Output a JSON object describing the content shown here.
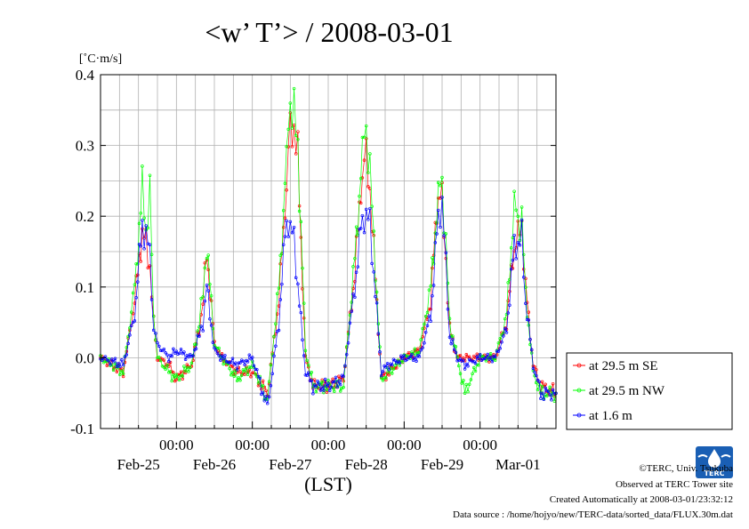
{
  "chart_data": {
    "type": "line",
    "title": "<w’ T’> / 2008-03-01",
    "ylabel": "[˚C·m/s]",
    "xlabel": "(LST)",
    "ylim": [
      -0.1,
      0.4
    ],
    "y_ticks": [
      -0.1,
      0.0,
      0.1,
      0.2,
      0.3,
      0.4
    ],
    "y_tick_labels": [
      "-0.1",
      "0.0",
      "0.1",
      "0.2",
      "0.3",
      "0.4"
    ],
    "x_unit": "days since 2008-02-24 00:00 LST",
    "xlim": [
      0,
      6
    ],
    "x_tick_positions": [
      1,
      2,
      3,
      4,
      5
    ],
    "x_time_labels": [
      "00:00",
      "00:00",
      "00:00",
      "00:00",
      "00:00"
    ],
    "x_date_labels": [
      {
        "label": "Feb-25",
        "pos": 0.5
      },
      {
        "label": "Feb-26",
        "pos": 1.5
      },
      {
        "label": "Feb-27",
        "pos": 2.5
      },
      {
        "label": "Feb-28",
        "pos": 3.5
      },
      {
        "label": "Feb-29",
        "pos": 4.5
      },
      {
        "label": "Mar-01",
        "pos": 5.5
      }
    ],
    "grid": true,
    "legend_position": "right",
    "series": [
      {
        "name": "at 29.5 m SE",
        "color": "#ff0000",
        "x": [
          0.0,
          0.3,
          0.45,
          0.55,
          0.6,
          0.65,
          0.7,
          0.75,
          0.9,
          1.0,
          1.2,
          1.3,
          1.35,
          1.4,
          1.5,
          1.6,
          1.8,
          2.0,
          2.2,
          2.35,
          2.45,
          2.5,
          2.55,
          2.6,
          2.7,
          2.8,
          3.0,
          3.2,
          3.35,
          3.45,
          3.5,
          3.55,
          3.6,
          3.7,
          3.8,
          4.0,
          4.2,
          4.35,
          4.45,
          4.5,
          4.55,
          4.6,
          4.7,
          4.8,
          5.0,
          5.2,
          5.35,
          5.45,
          5.5,
          5.55,
          5.6,
          5.7,
          5.8,
          6.0
        ],
        "y": [
          0.0,
          -0.02,
          0.08,
          0.18,
          0.16,
          0.13,
          0.05,
          0.0,
          -0.01,
          -0.03,
          -0.01,
          0.04,
          0.08,
          0.15,
          0.02,
          0.0,
          -0.02,
          -0.02,
          -0.05,
          0.08,
          0.25,
          0.32,
          0.33,
          0.28,
          0.0,
          -0.04,
          -0.04,
          -0.03,
          0.12,
          0.27,
          0.28,
          0.24,
          0.15,
          -0.03,
          -0.02,
          0.0,
          0.01,
          0.08,
          0.24,
          0.22,
          0.14,
          0.04,
          0.0,
          0.0,
          0.0,
          0.0,
          0.05,
          0.16,
          0.17,
          0.19,
          0.1,
          -0.01,
          -0.04,
          -0.05
        ]
      },
      {
        "name": "at 29.5 m NW",
        "color": "#00ff00",
        "x": [
          0.0,
          0.3,
          0.45,
          0.55,
          0.6,
          0.65,
          0.7,
          0.75,
          0.9,
          1.0,
          1.2,
          1.3,
          1.35,
          1.4,
          1.5,
          1.6,
          1.8,
          2.0,
          2.2,
          2.35,
          2.45,
          2.5,
          2.55,
          2.6,
          2.7,
          2.8,
          3.0,
          3.2,
          3.35,
          3.45,
          3.5,
          3.55,
          3.6,
          3.7,
          3.8,
          4.0,
          4.2,
          4.35,
          4.45,
          4.5,
          4.55,
          4.6,
          4.7,
          4.8,
          5.0,
          5.2,
          5.35,
          5.45,
          5.5,
          5.55,
          5.6,
          5.7,
          5.8,
          6.0
        ],
        "y": [
          0.0,
          -0.02,
          0.1,
          0.24,
          0.18,
          0.23,
          0.06,
          0.0,
          -0.02,
          -0.03,
          -0.01,
          0.05,
          0.09,
          0.16,
          0.02,
          0.0,
          -0.03,
          -0.01,
          -0.06,
          0.1,
          0.28,
          0.37,
          0.34,
          0.3,
          0.01,
          -0.04,
          -0.04,
          -0.04,
          0.14,
          0.29,
          0.33,
          0.26,
          0.17,
          -0.03,
          -0.02,
          0.0,
          0.01,
          0.1,
          0.23,
          0.25,
          0.16,
          0.05,
          0.0,
          -0.05,
          0.0,
          0.0,
          0.06,
          0.22,
          0.19,
          0.2,
          0.09,
          -0.02,
          -0.05,
          -0.05
        ]
      },
      {
        "name": "at 1.6 m",
        "color": "#0000ff",
        "x": [
          0.0,
          0.3,
          0.45,
          0.55,
          0.6,
          0.65,
          0.7,
          0.75,
          0.9,
          1.0,
          1.2,
          1.3,
          1.35,
          1.4,
          1.5,
          1.6,
          1.8,
          2.0,
          2.2,
          2.35,
          2.45,
          2.5,
          2.55,
          2.6,
          2.7,
          2.8,
          3.0,
          3.2,
          3.35,
          3.45,
          3.5,
          3.55,
          3.6,
          3.7,
          3.8,
          4.0,
          4.2,
          4.35,
          4.45,
          4.5,
          4.55,
          4.6,
          4.7,
          4.8,
          5.0,
          5.2,
          5.35,
          5.45,
          5.5,
          5.55,
          5.6,
          5.7,
          5.8,
          6.0
        ],
        "y": [
          0.0,
          -0.01,
          0.06,
          0.19,
          0.17,
          0.15,
          0.04,
          0.02,
          0.0,
          0.01,
          0.0,
          0.03,
          0.05,
          0.1,
          0.01,
          0.0,
          -0.01,
          0.0,
          -0.07,
          0.05,
          0.2,
          0.18,
          0.17,
          0.1,
          -0.02,
          -0.04,
          -0.04,
          -0.03,
          0.1,
          0.2,
          0.2,
          0.19,
          0.12,
          -0.02,
          -0.01,
          0.0,
          0.0,
          0.06,
          0.2,
          0.22,
          0.13,
          0.03,
          0.0,
          -0.01,
          0.0,
          0.0,
          0.04,
          0.16,
          0.16,
          0.17,
          0.08,
          -0.01,
          -0.05,
          -0.05
        ]
      }
    ]
  },
  "footer": {
    "copyright": "©TERC, Univ. Tsukuba",
    "observed": "Observed at TERC Tower site",
    "created": "Created Automatically at 2008-03-01/23:32:12",
    "source": "Data source : /home/hojyo/new/TERC-data/sorted_data/FLUX.30m.dat"
  },
  "logo": {
    "text": "TERC",
    "color": "#1a5fb4"
  }
}
